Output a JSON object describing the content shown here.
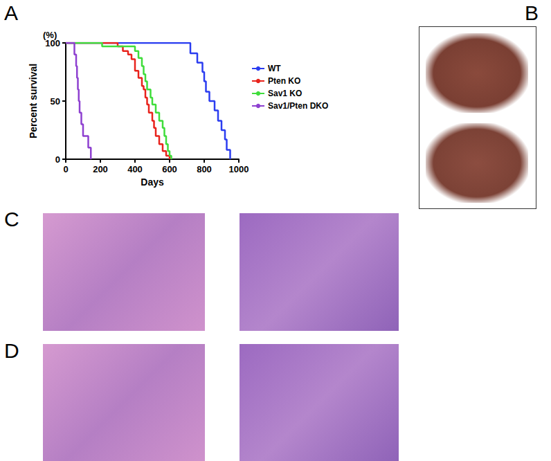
{
  "chart_data": {
    "type": "step",
    "ylabel": "Percent survival",
    "xlabel": "Days",
    "annotations": [
      "(%)"
    ],
    "xlim": [
      0,
      1000
    ],
    "xticks": [
      0,
      200,
      400,
      600,
      800,
      1000
    ],
    "ylim": [
      0,
      100
    ],
    "yticks": [
      0,
      50,
      100
    ],
    "grid": false,
    "legend": "right",
    "series": [
      {
        "name": "WT",
        "color": "#2b3df0",
        "x": [
          0,
          720,
          760,
          790,
          800,
          810,
          830,
          860,
          880,
          900,
          920,
          930,
          950
        ],
        "values": [
          100,
          91,
          83,
          75,
          67,
          58,
          50,
          42,
          33,
          25,
          17,
          8,
          0
        ]
      },
      {
        "name": "Pten KO",
        "color": "#e8231c",
        "x": [
          0,
          300,
          330,
          360,
          380,
          400,
          420,
          440,
          450,
          460,
          470,
          480,
          500,
          510,
          520,
          540,
          560,
          580,
          600
        ],
        "values": [
          100,
          97,
          93,
          90,
          86,
          76,
          70,
          63,
          60,
          53,
          47,
          40,
          33,
          27,
          20,
          13,
          7,
          3,
          0
        ]
      },
      {
        "name": "Sav1 KO",
        "color": "#3fdd3b",
        "x": [
          0,
          210,
          400,
          420,
          440,
          450,
          460,
          470,
          490,
          500,
          520,
          540,
          560,
          570,
          580,
          590,
          600,
          610
        ],
        "values": [
          100,
          97,
          93,
          87,
          80,
          73,
          67,
          60,
          53,
          47,
          40,
          33,
          27,
          20,
          13,
          7,
          3,
          0
        ]
      },
      {
        "name": "Sav1/Pten DKO",
        "color": "#8e40d0",
        "x": [
          0,
          50,
          60,
          65,
          70,
          75,
          80,
          90,
          100,
          130,
          145
        ],
        "values": [
          100,
          90,
          80,
          70,
          60,
          50,
          40,
          30,
          20,
          10,
          0
        ]
      }
    ]
  },
  "panel_labels": [
    "A",
    "B",
    "C",
    "D"
  ]
}
